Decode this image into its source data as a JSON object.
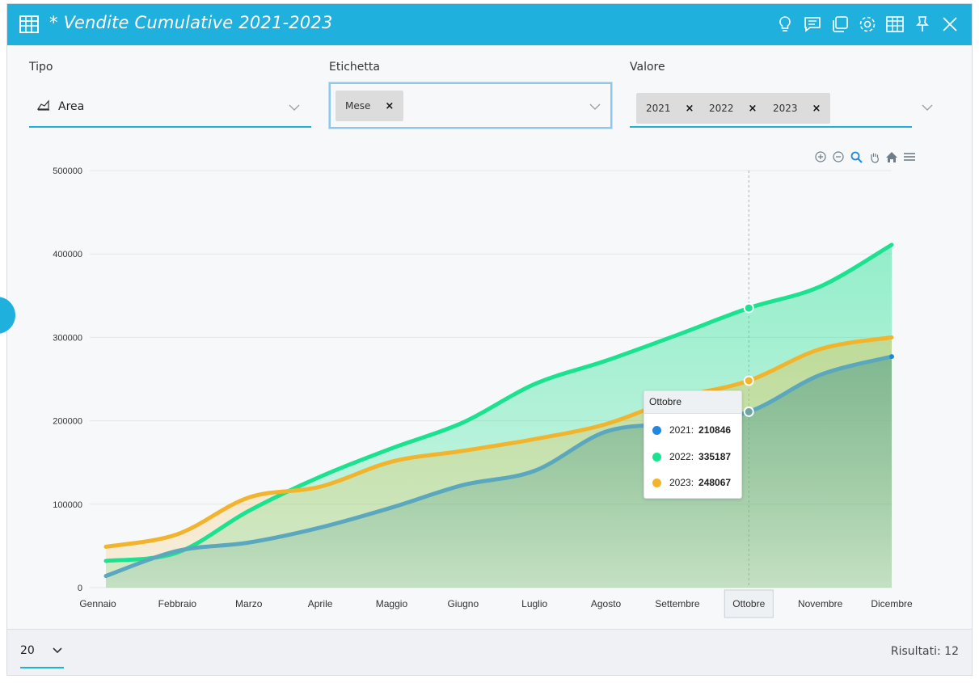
{
  "window": {
    "title": "* Vendite Cumulative 2021-2023"
  },
  "toolbar": {
    "icons": [
      "lightbulb-icon",
      "comment-icon",
      "copy-icon",
      "gear-icon",
      "table-icon",
      "pin-icon",
      "close-icon"
    ]
  },
  "filters": {
    "tipo": {
      "label": "Tipo",
      "value": "Area"
    },
    "etichetta": {
      "label": "Etichetta",
      "tags": [
        "Mese"
      ]
    },
    "valore": {
      "label": "Valore",
      "tags": [
        "2021",
        "2022",
        "2023"
      ]
    }
  },
  "chart_data": {
    "type": "area",
    "categories": [
      "Gennaio",
      "Febbraio",
      "Marzo",
      "Aprile",
      "Maggio",
      "Giugno",
      "Luglio",
      "Agosto",
      "Settembre",
      "Ottobre",
      "Novembre",
      "Dicembre"
    ],
    "series": [
      {
        "name": "2021",
        "color": "#5ba7be",
        "dot": "#1e88e5",
        "values": [
          14000,
          44000,
          54000,
          72000,
          96000,
          123000,
          140000,
          187000,
          197000,
          210846,
          255000,
          277000
        ]
      },
      {
        "name": "2022",
        "color": "#1be28f",
        "dot": "#1be28f",
        "values": [
          32000,
          42000,
          92000,
          133000,
          167000,
          198000,
          244000,
          272000,
          303000,
          335187,
          361000,
          411000
        ]
      },
      {
        "name": "2023",
        "color": "#f2b42c",
        "dot": "#f2b42c",
        "values": [
          49000,
          64000,
          108000,
          121000,
          151000,
          164000,
          178000,
          196000,
          227000,
          248067,
          286000,
          300000
        ]
      }
    ],
    "ylim": [
      0,
      500000
    ],
    "yticks": [
      "0",
      "100000",
      "200000",
      "300000",
      "400000",
      "500000"
    ],
    "grid": true,
    "highlight_index": 9,
    "tooltip": {
      "title": "Ottobre",
      "rows": [
        {
          "label": "2021:",
          "value": "210846"
        },
        {
          "label": "2022:",
          "value": "335187"
        },
        {
          "label": "2023:",
          "value": "248067"
        }
      ]
    }
  },
  "footer": {
    "page_size": "20",
    "results": "Risultati: 12"
  }
}
